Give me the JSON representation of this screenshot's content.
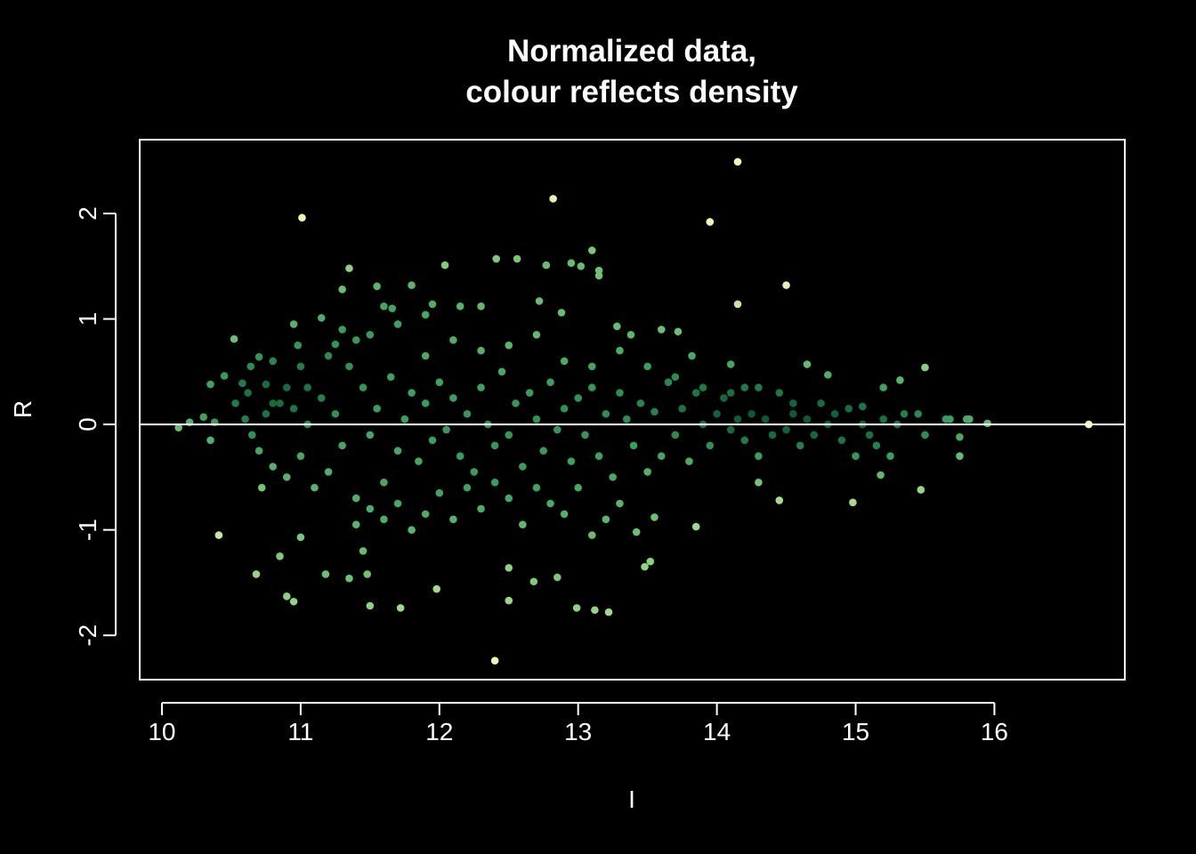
{
  "chart_data": {
    "type": "scatter",
    "title": "Normalized data,",
    "subtitle": "colour reflects density",
    "xlabel": "I",
    "ylabel": "R",
    "xlim": [
      9.84,
      16.94
    ],
    "ylim": [
      -2.42,
      2.7
    ],
    "x_ticks": [
      "10",
      "11",
      "12",
      "13",
      "14",
      "15",
      "16"
    ],
    "y_ticks": [
      "-2",
      "-1",
      "0",
      "1",
      "2"
    ],
    "reference_line_y": 0,
    "grid": false,
    "legend": "none",
    "colors": {
      "background": "#000000",
      "foreground": "#ffffff",
      "density_high": "#0b5a35",
      "density_mid": "#3a9e5c",
      "density_low": "#7cc87a",
      "density_lowest": "#f7fcb9"
    },
    "points": [
      [
        10.12,
        -0.03
      ],
      [
        10.2,
        0.02
      ],
      [
        10.3,
        0.07
      ],
      [
        10.35,
        0.38
      ],
      [
        10.38,
        0.02
      ],
      [
        10.41,
        -1.05
      ],
      [
        10.35,
        -0.15
      ],
      [
        10.45,
        0.46
      ],
      [
        10.52,
        0.81
      ],
      [
        10.53,
        0.2
      ],
      [
        10.58,
        0.39
      ],
      [
        10.62,
        0.3
      ],
      [
        10.64,
        0.55
      ],
      [
        10.7,
        0.64
      ],
      [
        10.68,
        -1.42
      ],
      [
        10.72,
        -0.6
      ],
      [
        10.75,
        0.38
      ],
      [
        10.8,
        0.6
      ],
      [
        10.85,
        -1.25
      ],
      [
        10.9,
        -1.63
      ],
      [
        10.95,
        -1.68
      ],
      [
        10.95,
        0.95
      ],
      [
        10.98,
        0.75
      ],
      [
        11.01,
        1.96
      ],
      [
        11.0,
        -1.07
      ],
      [
        11.05,
        0.35
      ],
      [
        11.15,
        1.01
      ],
      [
        11.18,
        -1.42
      ],
      [
        11.25,
        0.76
      ],
      [
        11.3,
        1.28
      ],
      [
        11.35,
        1.48
      ],
      [
        11.35,
        -1.46
      ],
      [
        11.4,
        0.8
      ],
      [
        11.45,
        -1.2
      ],
      [
        11.48,
        -1.42
      ],
      [
        11.5,
        -1.72
      ],
      [
        11.55,
        1.31
      ],
      [
        11.6,
        1.12
      ],
      [
        11.66,
        1.1
      ],
      [
        11.72,
        -1.74
      ],
      [
        11.8,
        1.32
      ],
      [
        11.9,
        1.04
      ],
      [
        11.95,
        1.14
      ],
      [
        11.98,
        -1.56
      ],
      [
        12.04,
        1.51
      ],
      [
        12.15,
        1.12
      ],
      [
        12.3,
        1.12
      ],
      [
        12.41,
        1.57
      ],
      [
        12.4,
        -2.24
      ],
      [
        12.5,
        -1.36
      ],
      [
        12.5,
        -1.67
      ],
      [
        12.56,
        1.57
      ],
      [
        12.68,
        -1.49
      ],
      [
        12.72,
        1.17
      ],
      [
        12.77,
        1.51
      ],
      [
        12.82,
        2.14
      ],
      [
        12.85,
        -1.45
      ],
      [
        12.88,
        1.06
      ],
      [
        12.95,
        1.53
      ],
      [
        12.99,
        -1.74
      ],
      [
        13.02,
        1.5
      ],
      [
        13.1,
        1.65
      ],
      [
        13.12,
        -1.76
      ],
      [
        13.15,
        1.46
      ],
      [
        13.15,
        1.41
      ],
      [
        13.22,
        -1.78
      ],
      [
        13.28,
        0.93
      ],
      [
        13.38,
        0.85
      ],
      [
        13.42,
        -1.02
      ],
      [
        13.48,
        -1.35
      ],
      [
        13.52,
        -1.3
      ],
      [
        13.55,
        -0.88
      ],
      [
        13.6,
        0.9
      ],
      [
        13.72,
        0.88
      ],
      [
        13.82,
        0.65
      ],
      [
        13.85,
        -0.97
      ],
      [
        13.95,
        1.92
      ],
      [
        14.15,
        2.49
      ],
      [
        14.15,
        1.14
      ],
      [
        14.1,
        0.57
      ],
      [
        14.2,
        0.35
      ],
      [
        14.3,
        -0.55
      ],
      [
        14.45,
        -0.72
      ],
      [
        14.5,
        1.32
      ],
      [
        14.55,
        0.2
      ],
      [
        14.65,
        0.57
      ],
      [
        14.8,
        0.47
      ],
      [
        14.98,
        -0.74
      ],
      [
        15.05,
        0.17
      ],
      [
        15.18,
        -0.48
      ],
      [
        15.2,
        0.35
      ],
      [
        15.32,
        0.42
      ],
      [
        15.45,
        0.1
      ],
      [
        15.47,
        -0.62
      ],
      [
        15.5,
        0.54
      ],
      [
        15.68,
        0.05
      ],
      [
        15.75,
        -0.3
      ],
      [
        15.82,
        0.05
      ],
      [
        15.95,
        0.01
      ],
      [
        16.68,
        0.0
      ],
      [
        10.6,
        0.05
      ],
      [
        10.65,
        -0.1
      ],
      [
        10.7,
        -0.25
      ],
      [
        10.75,
        0.1
      ],
      [
        10.8,
        -0.4
      ],
      [
        10.85,
        0.2
      ],
      [
        10.9,
        -0.5
      ],
      [
        10.95,
        0.15
      ],
      [
        11.0,
        -0.3
      ],
      [
        11.05,
        0.0
      ],
      [
        11.1,
        -0.6
      ],
      [
        11.15,
        0.25
      ],
      [
        11.2,
        -0.45
      ],
      [
        11.25,
        0.1
      ],
      [
        11.3,
        -0.2
      ],
      [
        11.35,
        0.55
      ],
      [
        11.4,
        -0.7
      ],
      [
        11.45,
        0.35
      ],
      [
        11.5,
        -0.1
      ],
      [
        11.55,
        0.15
      ],
      [
        11.6,
        -0.55
      ],
      [
        11.65,
        0.45
      ],
      [
        11.7,
        -0.25
      ],
      [
        11.75,
        0.05
      ],
      [
        11.8,
        0.3
      ],
      [
        11.85,
        -0.35
      ],
      [
        11.9,
        0.2
      ],
      [
        11.95,
        -0.15
      ],
      [
        12.0,
        0.4
      ],
      [
        12.05,
        -0.05
      ],
      [
        12.1,
        0.25
      ],
      [
        12.15,
        -0.3
      ],
      [
        12.2,
        0.1
      ],
      [
        12.25,
        -0.45
      ],
      [
        12.3,
        0.35
      ],
      [
        12.35,
        0.0
      ],
      [
        12.4,
        -0.2
      ],
      [
        12.45,
        0.5
      ],
      [
        12.5,
        -0.1
      ],
      [
        12.55,
        0.2
      ],
      [
        12.6,
        -0.4
      ],
      [
        12.65,
        0.3
      ],
      [
        12.7,
        0.05
      ],
      [
        12.75,
        -0.25
      ],
      [
        12.8,
        0.4
      ],
      [
        12.85,
        -0.05
      ],
      [
        12.9,
        0.15
      ],
      [
        12.95,
        -0.35
      ],
      [
        13.0,
        0.25
      ],
      [
        13.05,
        -0.1
      ],
      [
        13.1,
        0.35
      ],
      [
        13.15,
        -0.3
      ],
      [
        13.2,
        0.1
      ],
      [
        13.25,
        -0.5
      ],
      [
        13.3,
        0.3
      ],
      [
        13.35,
        0.05
      ],
      [
        13.4,
        -0.2
      ],
      [
        13.45,
        0.2
      ],
      [
        13.5,
        -0.45
      ],
      [
        13.55,
        0.12
      ],
      [
        13.6,
        -0.3
      ],
      [
        13.65,
        0.4
      ],
      [
        13.7,
        -0.1
      ],
      [
        13.75,
        0.15
      ],
      [
        13.8,
        -0.35
      ],
      [
        13.85,
        0.3
      ],
      [
        13.9,
        0.0
      ],
      [
        13.95,
        -0.2
      ],
      [
        14.0,
        0.1
      ],
      [
        14.05,
        0.25
      ],
      [
        14.1,
        -0.05
      ],
      [
        14.15,
        0.05
      ],
      [
        14.2,
        -0.15
      ],
      [
        14.25,
        0.1
      ],
      [
        14.3,
        -0.3
      ],
      [
        14.35,
        0.05
      ],
      [
        14.4,
        -0.1
      ],
      [
        14.45,
        0.3
      ],
      [
        14.5,
        -0.05
      ],
      [
        14.55,
        0.1
      ],
      [
        14.6,
        -0.2
      ],
      [
        14.65,
        0.05
      ],
      [
        14.7,
        -0.1
      ],
      [
        14.75,
        0.2
      ],
      [
        14.8,
        0.0
      ],
      [
        14.85,
        0.1
      ],
      [
        14.9,
        -0.15
      ],
      [
        14.95,
        0.15
      ],
      [
        15.0,
        -0.3
      ],
      [
        15.05,
        0.0
      ],
      [
        15.1,
        -0.1
      ],
      [
        15.15,
        -0.2
      ],
      [
        15.2,
        0.05
      ],
      [
        15.25,
        -0.3
      ],
      [
        15.3,
        0.0
      ],
      [
        15.35,
        0.1
      ],
      [
        15.5,
        -0.1
      ],
      [
        15.65,
        0.05
      ],
      [
        15.75,
        -0.12
      ],
      [
        15.8,
        0.05
      ],
      [
        11.4,
        -0.95
      ],
      [
        11.5,
        -0.8
      ],
      [
        11.6,
        -0.9
      ],
      [
        11.7,
        -0.75
      ],
      [
        11.8,
        -1.0
      ],
      [
        11.9,
        -0.85
      ],
      [
        12.0,
        -0.65
      ],
      [
        12.1,
        -0.9
      ],
      [
        12.2,
        -0.6
      ],
      [
        12.3,
        -0.8
      ],
      [
        12.4,
        -0.55
      ],
      [
        12.5,
        -0.7
      ],
      [
        12.6,
        -0.95
      ],
      [
        12.7,
        -0.6
      ],
      [
        12.8,
        -0.75
      ],
      [
        12.9,
        -0.85
      ],
      [
        13.0,
        -0.6
      ],
      [
        13.1,
        -1.05
      ],
      [
        13.2,
        -0.9
      ],
      [
        13.3,
        -0.75
      ],
      [
        11.3,
        0.9
      ],
      [
        11.5,
        0.85
      ],
      [
        11.7,
        0.95
      ],
      [
        11.9,
        0.65
      ],
      [
        12.1,
        0.8
      ],
      [
        12.3,
        0.7
      ],
      [
        12.5,
        0.75
      ],
      [
        12.7,
        0.85
      ],
      [
        12.9,
        0.6
      ],
      [
        13.1,
        0.55
      ],
      [
        13.3,
        0.7
      ],
      [
        13.5,
        0.55
      ],
      [
        13.7,
        0.45
      ],
      [
        13.9,
        0.35
      ],
      [
        14.1,
        0.3
      ],
      [
        14.3,
        0.35
      ],
      [
        11.2,
        0.65
      ],
      [
        11.0,
        0.55
      ],
      [
        10.9,
        0.35
      ],
      [
        10.8,
        0.2
      ]
    ]
  }
}
